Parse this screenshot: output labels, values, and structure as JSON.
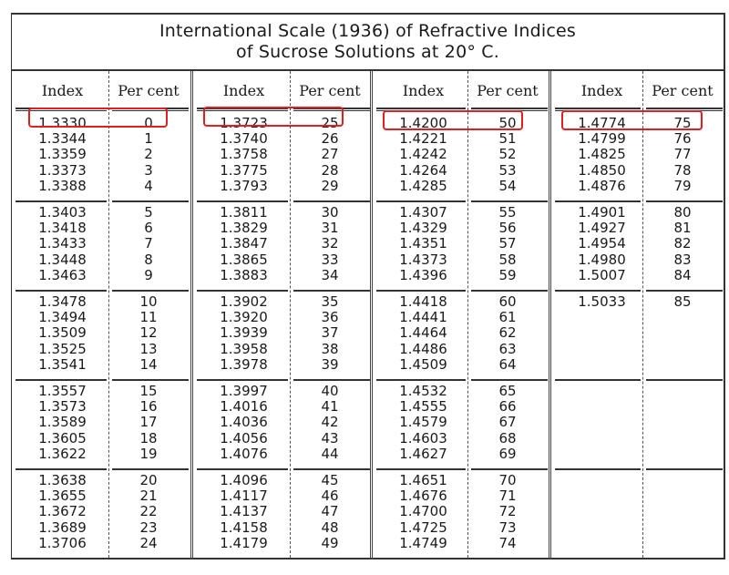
{
  "title": {
    "line1": "International Scale (1936) of Refractive Indices",
    "line2": "of Sucrose Solutions at 20° C."
  },
  "headers": {
    "index": "Index",
    "percent": "Per cent"
  },
  "highlight_color": "#e02020",
  "highlighted_rows": [
    {
      "group": 0,
      "index": "1.3330",
      "percent": "0"
    },
    {
      "group": 1,
      "index": "1.3723",
      "percent": "25"
    },
    {
      "group": 2,
      "index": "1.4200",
      "percent": "50"
    },
    {
      "group": 3,
      "index": "1.4774",
      "percent": "75"
    }
  ],
  "groups": [
    {
      "blocks": [
        [
          [
            "1.3330",
            "0"
          ],
          [
            "1.3344",
            "1"
          ],
          [
            "1.3359",
            "2"
          ],
          [
            "1.3373",
            "3"
          ],
          [
            "1.3388",
            "4"
          ]
        ],
        [
          [
            "1.3403",
            "5"
          ],
          [
            "1.3418",
            "6"
          ],
          [
            "1.3433",
            "7"
          ],
          [
            "1.3448",
            "8"
          ],
          [
            "1.3463",
            "9"
          ]
        ],
        [
          [
            "1.3478",
            "10"
          ],
          [
            "1.3494",
            "11"
          ],
          [
            "1.3509",
            "12"
          ],
          [
            "1.3525",
            "13"
          ],
          [
            "1.3541",
            "14"
          ]
        ],
        [
          [
            "1.3557",
            "15"
          ],
          [
            "1.3573",
            "16"
          ],
          [
            "1.3589",
            "17"
          ],
          [
            "1.3605",
            "18"
          ],
          [
            "1.3622",
            "19"
          ]
        ],
        [
          [
            "1.3638",
            "20"
          ],
          [
            "1.3655",
            "21"
          ],
          [
            "1.3672",
            "22"
          ],
          [
            "1.3689",
            "23"
          ],
          [
            "1.3706",
            "24"
          ]
        ]
      ]
    },
    {
      "blocks": [
        [
          [
            "1.3723",
            "25"
          ],
          [
            "1.3740",
            "26"
          ],
          [
            "1.3758",
            "27"
          ],
          [
            "1.3775",
            "28"
          ],
          [
            "1.3793",
            "29"
          ]
        ],
        [
          [
            "1.3811",
            "30"
          ],
          [
            "1.3829",
            "31"
          ],
          [
            "1.3847",
            "32"
          ],
          [
            "1.3865",
            "33"
          ],
          [
            "1.3883",
            "34"
          ]
        ],
        [
          [
            "1.3902",
            "35"
          ],
          [
            "1.3920",
            "36"
          ],
          [
            "1.3939",
            "37"
          ],
          [
            "1.3958",
            "38"
          ],
          [
            "1.3978",
            "39"
          ]
        ],
        [
          [
            "1.3997",
            "40"
          ],
          [
            "1.4016",
            "41"
          ],
          [
            "1.4036",
            "42"
          ],
          [
            "1.4056",
            "43"
          ],
          [
            "1.4076",
            "44"
          ]
        ],
        [
          [
            "1.4096",
            "45"
          ],
          [
            "1.4117",
            "46"
          ],
          [
            "1.4137",
            "47"
          ],
          [
            "1.4158",
            "48"
          ],
          [
            "1.4179",
            "49"
          ]
        ]
      ]
    },
    {
      "blocks": [
        [
          [
            "1.4200",
            "50"
          ],
          [
            "1.4221",
            "51"
          ],
          [
            "1.4242",
            "52"
          ],
          [
            "1.4264",
            "53"
          ],
          [
            "1.4285",
            "54"
          ]
        ],
        [
          [
            "1.4307",
            "55"
          ],
          [
            "1.4329",
            "56"
          ],
          [
            "1.4351",
            "57"
          ],
          [
            "1.4373",
            "58"
          ],
          [
            "1.4396",
            "59"
          ]
        ],
        [
          [
            "1.4418",
            "60"
          ],
          [
            "1.4441",
            "61"
          ],
          [
            "1.4464",
            "62"
          ],
          [
            "1.4486",
            "63"
          ],
          [
            "1.4509",
            "64"
          ]
        ],
        [
          [
            "1.4532",
            "65"
          ],
          [
            "1.4555",
            "66"
          ],
          [
            "1.4579",
            "67"
          ],
          [
            "1.4603",
            "68"
          ],
          [
            "1.4627",
            "69"
          ]
        ],
        [
          [
            "1.4651",
            "70"
          ],
          [
            "1.4676",
            "71"
          ],
          [
            "1.4700",
            "72"
          ],
          [
            "1.4725",
            "73"
          ],
          [
            "1.4749",
            "74"
          ]
        ]
      ]
    },
    {
      "blocks": [
        [
          [
            "1.4774",
            "75"
          ],
          [
            "1.4799",
            "76"
          ],
          [
            "1.4825",
            "77"
          ],
          [
            "1.4850",
            "78"
          ],
          [
            "1.4876",
            "79"
          ]
        ],
        [
          [
            "1.4901",
            "80"
          ],
          [
            "1.4927",
            "81"
          ],
          [
            "1.4954",
            "82"
          ],
          [
            "1.4980",
            "83"
          ],
          [
            "1.5007",
            "84"
          ]
        ],
        [
          [
            "1.5033",
            "85"
          ]
        ],
        [],
        []
      ]
    }
  ]
}
